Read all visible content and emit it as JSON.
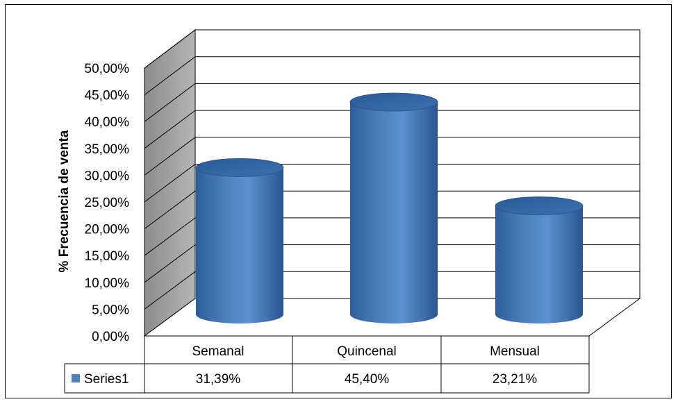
{
  "chart_data": {
    "type": "bar",
    "style": "3d-cylinder",
    "categories": [
      "Semanal",
      "Quincenal",
      "Mensual"
    ],
    "series": [
      {
        "name": "Series1",
        "values": [
          31.39,
          45.4,
          23.21
        ],
        "labels": [
          "31,39%",
          "45,40%",
          "23,21%"
        ]
      }
    ],
    "ylabel": "% Frecuencia de venta",
    "ylim": [
      0,
      50
    ],
    "yticks": [
      0,
      5,
      10,
      15,
      20,
      25,
      30,
      35,
      40,
      45,
      50
    ],
    "ytick_labels": [
      "0,00%",
      "5,00%",
      "10,00%",
      "15,00%",
      "20,00%",
      "25,00%",
      "30,00%",
      "35,00%",
      "40,00%",
      "45,00%",
      "50,00%"
    ],
    "grid": true,
    "legend": "data-table",
    "colors": {
      "bar": "#4f81bd",
      "bar_dark": "#2c5490",
      "wall": "#a6a6a6",
      "floor": "#ffffff"
    }
  }
}
